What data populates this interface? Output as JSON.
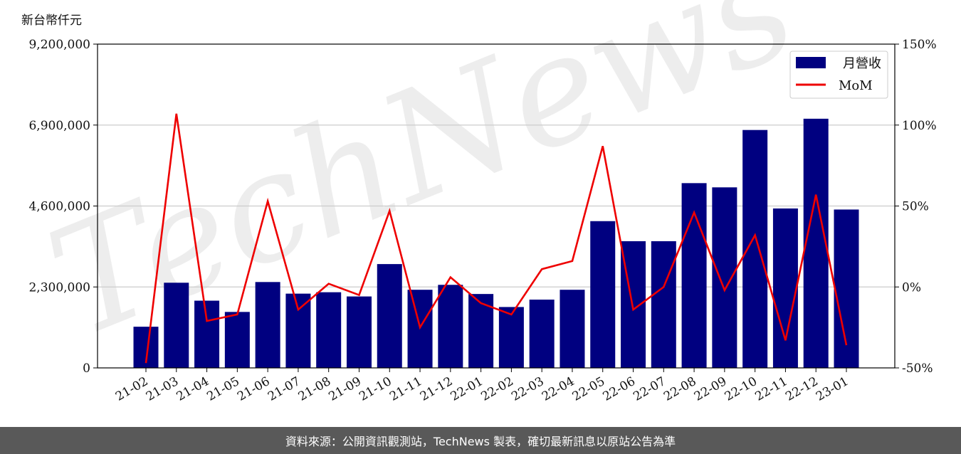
{
  "chart_data": {
    "type": "bar",
    "categories": [
      "21-02",
      "21-03",
      "21-04",
      "21-05",
      "21-06",
      "21-07",
      "21-08",
      "21-09",
      "21-10",
      "21-11",
      "21-12",
      "22-01",
      "22-02",
      "22-03",
      "22-04",
      "22-05",
      "22-06",
      "22-07",
      "22-08",
      "22-09",
      "22-10",
      "22-11",
      "22-12",
      "23-01"
    ],
    "series": [
      {
        "name": "月營收",
        "kind": "bar",
        "axis": "left",
        "color": "#000080",
        "values": [
          1170000,
          2420000,
          1910000,
          1590000,
          2440000,
          2110000,
          2150000,
          2030000,
          2950000,
          2220000,
          2360000,
          2100000,
          1730000,
          1940000,
          2220000,
          4170000,
          3600000,
          3600000,
          5250000,
          5130000,
          6760000,
          4530000,
          7080000,
          4500000
        ]
      },
      {
        "name": "MoM",
        "kind": "line",
        "axis": "right",
        "color": "#ee0000",
        "values": [
          -47,
          107,
          -21,
          -17,
          53,
          -14,
          2,
          -5,
          47,
          -25,
          6,
          -10,
          -17,
          11,
          16,
          87,
          -14,
          0,
          46,
          -2,
          32,
          -33,
          57,
          -36
        ]
      }
    ],
    "ylabel_left": "新台幣仟元",
    "ylim_left": [
      0,
      9200000
    ],
    "yticks_left": [
      "0",
      "2,300,000",
      "4,600,000",
      "6,900,000",
      "9,200,000"
    ],
    "ylim_right": [
      -50,
      150
    ],
    "yticks_right": [
      "-50%",
      "0%",
      "50%",
      "100%",
      "150%"
    ],
    "grid": true,
    "legend_position": "top-right"
  },
  "watermark": "TechNews",
  "footer": "資料來源：公開資訊觀測站，TechNews 製表，確切最新訊息以原站公告為準"
}
